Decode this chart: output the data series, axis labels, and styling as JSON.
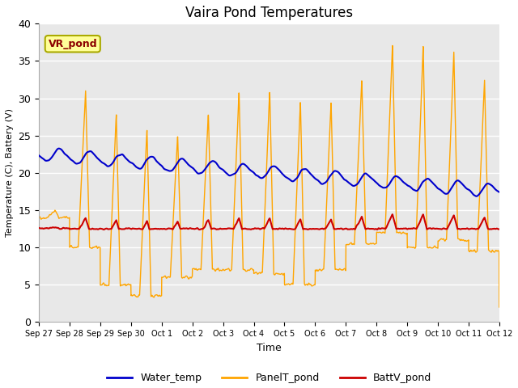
{
  "title": "Vaira Pond Temperatures",
  "ylabel": "Temperature (C), Battery (V)",
  "xlabel": "Time",
  "annotation": "VR_pond",
  "ylim": [
    0,
    40
  ],
  "legend": [
    "Water_temp",
    "PanelT_pond",
    "BattV_pond"
  ],
  "legend_colors": [
    "#0000cc",
    "#ffa500",
    "#cc0000"
  ],
  "bg_color": "#e8e8e8",
  "grid_color": "white",
  "tick_labels": [
    "Sep 27",
    "Sep 28",
    "Sep 29",
    "Sep 30",
    "Oct 1",
    "Oct 2",
    "Oct 3",
    "Oct 4",
    "Oct 5",
    "Oct 6",
    "Oct 7",
    "Oct 8",
    "Oct 9",
    "Oct 10",
    "Oct 11",
    "Oct 12"
  ],
  "annotation_box_color": "#ffff99",
  "annotation_text_color": "#8b0000",
  "annotation_edge_color": "#aaaa00"
}
